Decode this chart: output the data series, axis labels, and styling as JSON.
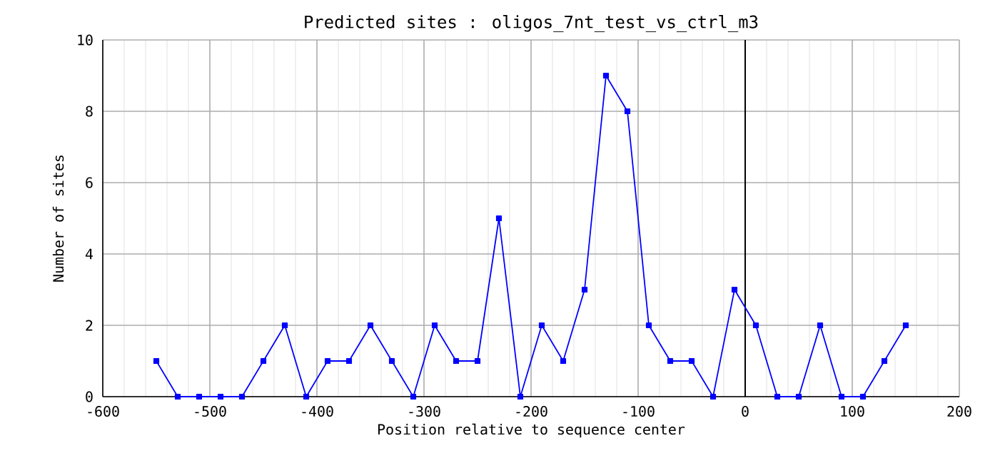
{
  "chart_data": {
    "type": "line",
    "title": "Predicted sites : oligos_7nt_test_vs_ctrl_m3",
    "xlabel": "Position relative to sequence center",
    "ylabel": "Number of sites",
    "x": [
      -550,
      -530,
      -510,
      -490,
      -470,
      -450,
      -430,
      -410,
      -390,
      -370,
      -350,
      -330,
      -310,
      -290,
      -270,
      -250,
      -230,
      -210,
      -190,
      -170,
      -150,
      -130,
      -110,
      -90,
      -70,
      -50,
      -30,
      -10,
      10,
      30,
      50,
      70,
      90,
      110,
      130,
      150
    ],
    "series": [
      {
        "color": "#0000ff",
        "values": [
          1,
          0,
          0,
          0,
          0,
          1,
          2,
          0,
          1,
          1,
          2,
          1,
          0,
          2,
          1,
          1,
          5,
          0,
          2,
          1,
          3,
          9,
          8,
          2,
          1,
          1,
          0,
          3,
          2,
          0,
          0,
          2,
          0,
          0,
          1,
          2
        ]
      }
    ],
    "xlim": [
      -600,
      200
    ],
    "xticks": [
      -600,
      -500,
      -400,
      -300,
      -200,
      -100,
      0,
      100,
      200
    ],
    "ylim": [
      0,
      10
    ],
    "yticks": [
      0,
      2,
      4,
      6,
      8,
      10
    ],
    "ref_lines": [
      {
        "axis": "x",
        "value": 0,
        "color": "#000000"
      }
    ],
    "grid": true,
    "marker": "square",
    "line_style": "solid"
  }
}
